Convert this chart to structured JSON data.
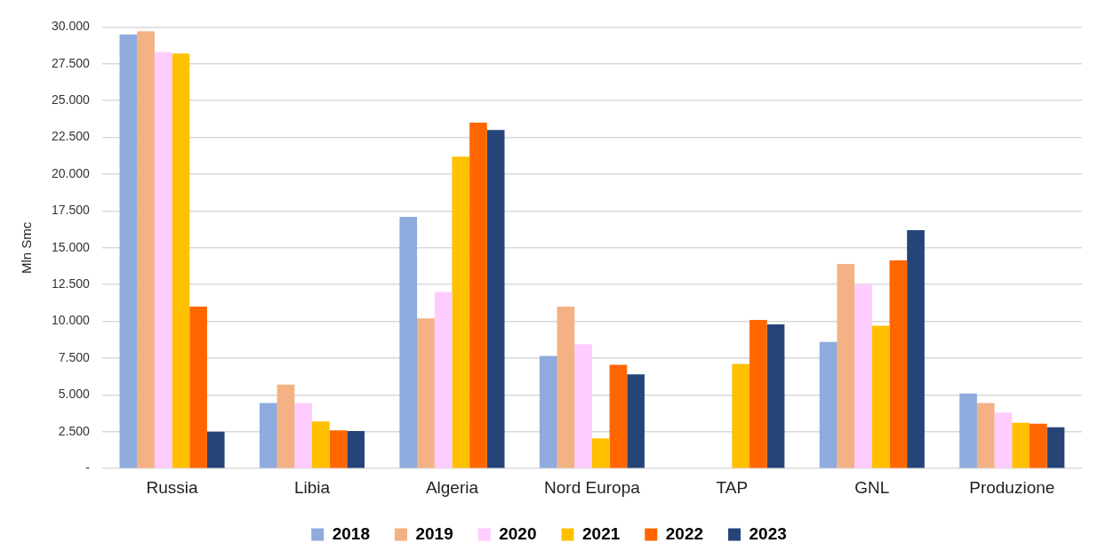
{
  "chart_data": {
    "type": "bar",
    "ylabel": "Mln Smc",
    "categories": [
      "Russia",
      "Libia",
      "Algeria",
      "Nord Europa",
      "TAP",
      "GNL",
      "Produzione"
    ],
    "series": [
      {
        "name": "2018",
        "color": "#8faadc",
        "values": [
          29500,
          4450,
          17100,
          7650,
          null,
          8600,
          5100
        ]
      },
      {
        "name": "2019",
        "color": "#f4b183",
        "values": [
          29700,
          5700,
          10200,
          11000,
          null,
          13900,
          4450
        ]
      },
      {
        "name": "2020",
        "color": "#ffccff",
        "values": [
          28300,
          4450,
          12000,
          8450,
          null,
          12500,
          3800
        ]
      },
      {
        "name": "2021",
        "color": "#ffc000",
        "values": [
          28200,
          3200,
          21200,
          2050,
          7100,
          9700,
          3100
        ]
      },
      {
        "name": "2022",
        "color": "#ff6600",
        "values": [
          11000,
          2600,
          23500,
          7050,
          10100,
          14150,
          3050
        ]
      },
      {
        "name": "2023",
        "color": "#264478",
        "values": [
          2500,
          2550,
          23000,
          6400,
          9800,
          16200,
          2800
        ]
      }
    ],
    "ylim": [
      0,
      30000
    ],
    "yticks": [
      {
        "value": 0,
        "label": "-"
      },
      {
        "value": 2500,
        "label": "2.500"
      },
      {
        "value": 5000,
        "label": "5.000"
      },
      {
        "value": 7500,
        "label": "7.500"
      },
      {
        "value": 10000,
        "label": "10.000"
      },
      {
        "value": 12500,
        "label": "12.500"
      },
      {
        "value": 15000,
        "label": "15.000"
      },
      {
        "value": 17500,
        "label": "17.500"
      },
      {
        "value": 20000,
        "label": "20.000"
      },
      {
        "value": 22500,
        "label": "22.500"
      },
      {
        "value": 25000,
        "label": "25.000"
      },
      {
        "value": 27500,
        "label": "27.500"
      },
      {
        "value": 30000,
        "label": "30.000"
      }
    ],
    "grid": "y",
    "legend": "bottom"
  }
}
